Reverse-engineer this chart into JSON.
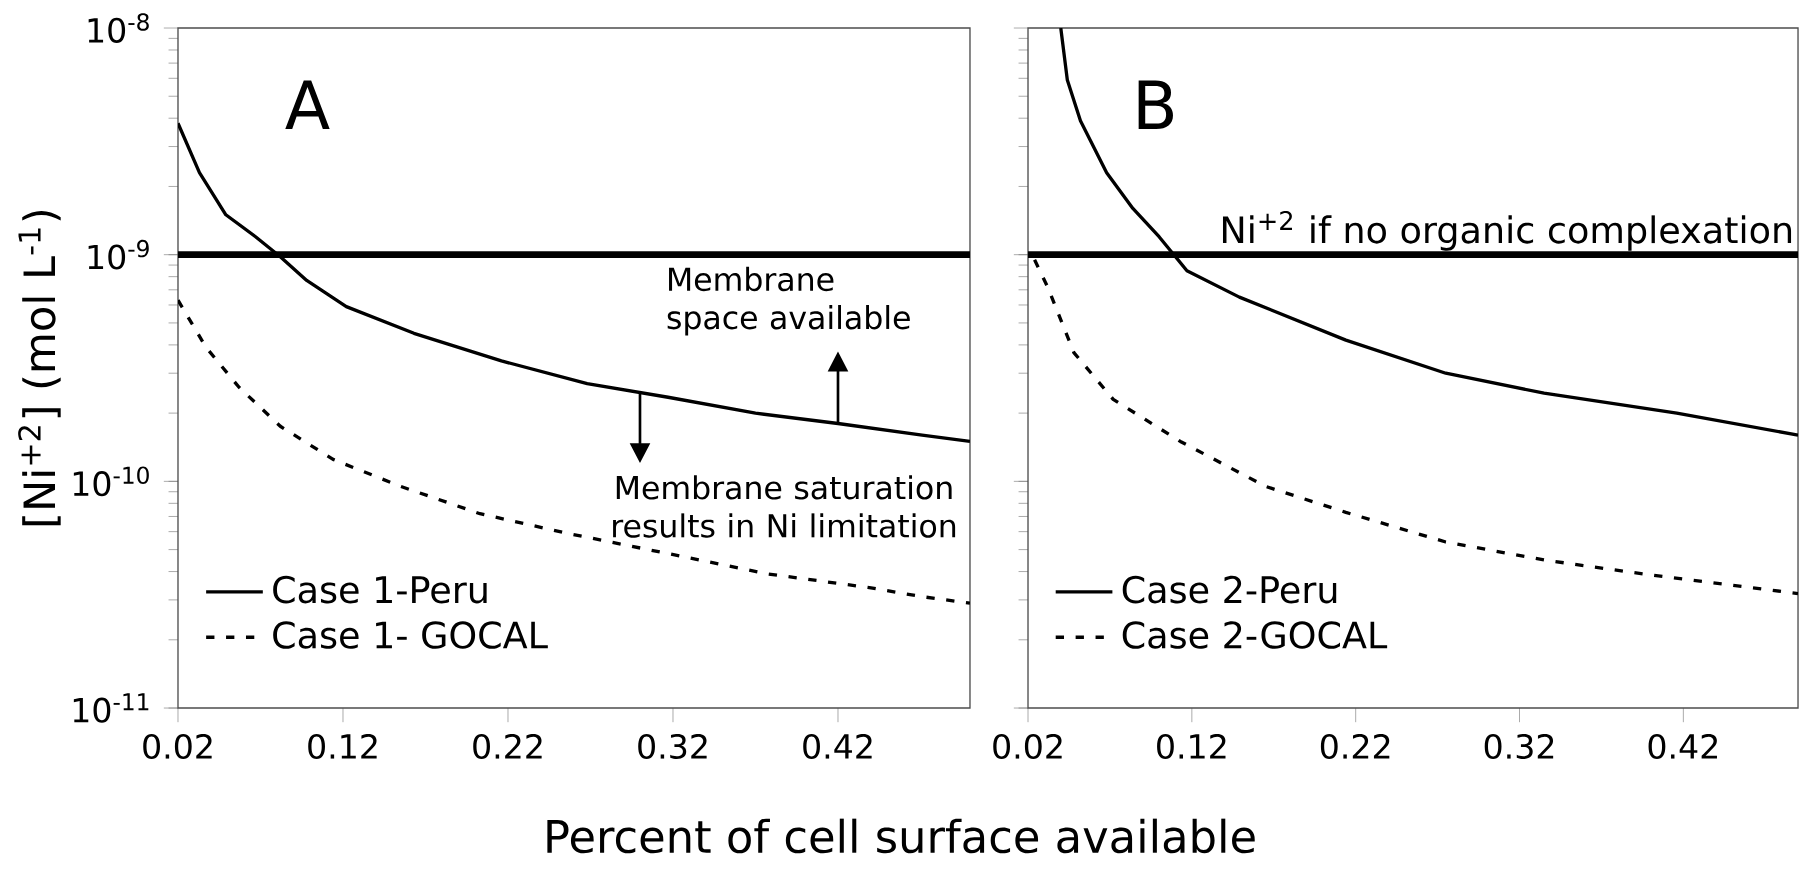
{
  "chart_data": [
    {
      "type": "line",
      "xlabel": "Percent of cell surface available",
      "ylabel": "[Ni$^{+2}$] (mol L$^{-1}$)",
      "log": "y",
      "legend": "bottom left",
      "xlim": [
        0.02,
        0.5
      ],
      "ylim": [
        1e-11,
        1e-08
      ],
      "xticks": [
        0.02,
        0.12,
        0.22,
        0.32,
        0.42
      ],
      "yticks": [
        {
          "value": 1e-11,
          "label": "10$^{-11}$"
        },
        {
          "value": 1e-10,
          "label": "10$^{-10}$"
        },
        {
          "value": 1e-09,
          "label": "10$^{-9}$"
        },
        {
          "value": 1e-08,
          "label": "10$^{-8}$"
        }
      ],
      "ref_lines": [
        {
          "axis": "y",
          "value": 1e-09,
          "color": "#000000"
        }
      ],
      "annotations": [
        "A",
        {
          "text": "Membrane space available",
          "x": 0.42,
          "y": 1.8e-10
        },
        {
          "text": "Membrane saturation results in Ni limitation",
          "x": 0.3,
          "y": 2.5e-10
        }
      ],
      "series": [
        {
          "name": "Case 1-Peru",
          "color": "#000000",
          "line_style": "solid",
          "x": [
            0.02,
            0.033,
            0.049,
            0.067,
            0.082,
            0.098,
            0.122,
            0.163,
            0.216,
            0.268,
            0.317,
            0.37,
            0.42,
            0.471,
            0.5
          ],
          "values": [
            3.8e-09,
            2.3e-09,
            1.5e-09,
            1.2e-09,
            9.8e-10,
            7.7e-10,
            5.9e-10,
            4.5e-10,
            3.4e-10,
            2.7e-10,
            2.35e-10,
            2e-10,
            1.8e-10,
            1.6e-10,
            1.5e-10
          ]
        },
        {
          "name": "Case 1- GOCAL",
          "color": "#000000",
          "line_style": "dashed",
          "x": [
            0.02,
            0.037,
            0.057,
            0.082,
            0.114,
            0.155,
            0.203,
            0.256,
            0.317,
            0.378,
            0.439,
            0.471,
            0.5
          ],
          "values": [
            6.3e-10,
            3.9e-10,
            2.6e-10,
            1.75e-10,
            1.25e-10,
            9.5e-11,
            7.2e-11,
            5.9e-11,
            4.8e-11,
            3.9e-11,
            3.4e-11,
            3.1e-11,
            2.9e-11
          ]
        }
      ]
    },
    {
      "type": "line",
      "log": "y",
      "legend": "bottom left",
      "tick_labels": "x",
      "xlim": [
        0.02,
        0.49
      ],
      "ylim": [
        1e-11,
        1e-08
      ],
      "xticks": [
        0.02,
        0.12,
        0.22,
        0.32,
        0.42
      ],
      "yticks": [
        {
          "value": 1e-11,
          "label": null
        },
        {
          "value": 1e-10,
          "label": null
        },
        {
          "value": 1e-09,
          "label": null
        },
        {
          "value": 1e-08,
          "label": null
        }
      ],
      "ref_lines": [
        {
          "axis": "y",
          "value": 1e-09,
          "label": "Ni$^{+2}$ if no organic complexation",
          "color": "#000000"
        }
      ],
      "annotations": [
        "B"
      ],
      "series": [
        {
          "name": "Case 2-Peru",
          "color": "#000000",
          "line_style": "solid",
          "x": [
            0.04,
            0.044,
            0.052,
            0.068,
            0.084,
            0.1,
            0.109,
            0.117,
            0.149,
            0.214,
            0.275,
            0.335,
            0.416,
            0.49
          ],
          "values": [
            1e-08,
            5.9e-09,
            3.9e-09,
            2.3e-09,
            1.6e-09,
            1.2e-09,
            1e-09,
            8.5e-10,
            6.5e-10,
            4.2e-10,
            3e-10,
            2.45e-10,
            2e-10,
            1.6e-10
          ]
        },
        {
          "name": "Case 2-GOCAL",
          "color": "#000000",
          "line_style": "dashed",
          "x": [
            0.024,
            0.032,
            0.048,
            0.072,
            0.113,
            0.165,
            0.214,
            0.275,
            0.335,
            0.396,
            0.49
          ],
          "values": [
            9.5e-10,
            7.2e-10,
            3.7e-10,
            2.3e-10,
            1.5e-10,
            9.5e-11,
            7.3e-11,
            5.4e-11,
            4.5e-11,
            3.9e-11,
            3.2e-11
          ]
        }
      ]
    }
  ]
}
